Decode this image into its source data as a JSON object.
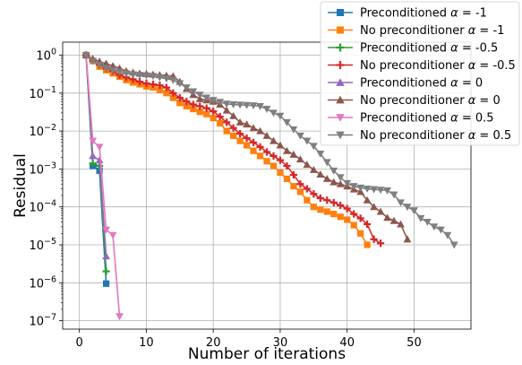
{
  "chart_data": {
    "type": "line",
    "xlabel": "Number of iterations",
    "ylabel": "Residual",
    "xlim": [
      -2.5,
      58.5
    ],
    "ylim": [
      6e-08,
      2.2
    ],
    "yscale": "log",
    "grid": true,
    "legend_position": "top-right",
    "xticks": [
      0,
      10,
      20,
      30,
      40,
      50
    ],
    "xtick_labels": [
      "0",
      "10",
      "20",
      "30",
      "40",
      "50"
    ],
    "yticks": [
      1e-07,
      1e-06,
      1e-05,
      0.0001,
      0.001,
      0.01,
      0.1,
      1
    ],
    "ytick_labels": [
      {
        "base": "10",
        "exp": "−7"
      },
      {
        "base": "10",
        "exp": "−6"
      },
      {
        "base": "10",
        "exp": "−5"
      },
      {
        "base": "10",
        "exp": "−4"
      },
      {
        "base": "10",
        "exp": "−3"
      },
      {
        "base": "10",
        "exp": "−2"
      },
      {
        "base": "10",
        "exp": "−1"
      },
      {
        "base": "10",
        "exp": "0"
      }
    ],
    "series": [
      {
        "name": "Preconditioned α = -1",
        "name_prefix": "Preconditioned ",
        "name_alpha": "α",
        "name_value": " = -1",
        "color": "#1f77b4",
        "marker": "square",
        "x": [
          1,
          2,
          3,
          4
        ],
        "y": [
          1.0,
          0.0012,
          0.0009,
          9.5e-07
        ]
      },
      {
        "name": "No preconditioner α = -1",
        "name_prefix": "No preconditioner ",
        "name_alpha": "α",
        "name_value": " = -1",
        "color": "#ff7f0e",
        "marker": "square",
        "x": [
          1,
          2,
          3,
          4,
          5,
          6,
          7,
          8,
          9,
          10,
          11,
          12,
          13,
          14,
          15,
          16,
          17,
          18,
          19,
          20,
          21,
          22,
          23,
          24,
          25,
          26,
          27,
          28,
          29,
          30,
          31,
          32,
          33,
          34,
          35,
          36,
          37,
          38,
          39,
          40,
          41,
          42,
          43
        ],
        "y": [
          1.0,
          0.7,
          0.5,
          0.4,
          0.33,
          0.27,
          0.22,
          0.19,
          0.17,
          0.15,
          0.14,
          0.12,
          0.1,
          0.075,
          0.055,
          0.045,
          0.038,
          0.032,
          0.028,
          0.022,
          0.016,
          0.01,
          0.0075,
          0.0055,
          0.0042,
          0.003,
          0.0022,
          0.0016,
          0.0012,
          0.0008,
          0.00055,
          0.00035,
          0.00025,
          0.00015,
          0.0001,
          8.5e-05,
          7.5e-05,
          6.5e-05,
          5.5e-05,
          4.6e-05,
          3.3e-05,
          2e-05,
          1e-05
        ]
      },
      {
        "name": "Preconditioned α = -0.5",
        "name_prefix": "Preconditioned ",
        "name_alpha": "α",
        "name_value": " = -0.5",
        "color": "#2ca02c",
        "marker": "plus",
        "x": [
          1,
          2,
          3,
          4
        ],
        "y": [
          1.0,
          0.0014,
          0.0012,
          2e-06
        ]
      },
      {
        "name": "No preconditioner α = -0.5",
        "name_prefix": "No preconditioner ",
        "name_alpha": "α",
        "name_value": " = -0.5",
        "color": "#d62728",
        "marker": "plus",
        "x": [
          1,
          2,
          3,
          4,
          5,
          6,
          7,
          8,
          9,
          10,
          11,
          12,
          13,
          14,
          15,
          16,
          17,
          18,
          19,
          20,
          21,
          22,
          23,
          24,
          25,
          26,
          27,
          28,
          29,
          30,
          31,
          32,
          33,
          34,
          35,
          36,
          37,
          38,
          39,
          40,
          41,
          42,
          43,
          44,
          45
        ],
        "y": [
          1.0,
          0.75,
          0.56,
          0.45,
          0.38,
          0.3,
          0.26,
          0.23,
          0.2,
          0.18,
          0.17,
          0.16,
          0.14,
          0.1,
          0.075,
          0.06,
          0.05,
          0.045,
          0.04,
          0.033,
          0.024,
          0.017,
          0.012,
          0.0085,
          0.0065,
          0.005,
          0.0038,
          0.0028,
          0.0022,
          0.0017,
          0.0012,
          0.0007,
          0.0004,
          0.0003,
          0.00022,
          0.00017,
          0.00015,
          0.00013,
          0.00011,
          9e-05,
          6.5e-05,
          5e-05,
          3.5e-05,
          1.4e-05,
          1.1e-05
        ]
      },
      {
        "name": "Preconditioned α = 0",
        "name_prefix": "Preconditioned ",
        "name_alpha": "α",
        "name_value": " = 0",
        "color": "#9467bd",
        "marker": "triangle-up",
        "x": [
          1,
          2,
          3,
          4
        ],
        "y": [
          1.0,
          0.0022,
          0.0017,
          5e-06
        ]
      },
      {
        "name": "No preconditioner α = 0",
        "name_prefix": "No preconditioner ",
        "name_alpha": "α",
        "name_value": " = 0",
        "color": "#8c564b",
        "marker": "triangle-up",
        "x": [
          1,
          2,
          3,
          4,
          5,
          6,
          7,
          8,
          9,
          10,
          11,
          12,
          13,
          14,
          15,
          16,
          17,
          18,
          19,
          20,
          21,
          22,
          23,
          24,
          25,
          26,
          27,
          28,
          29,
          30,
          31,
          32,
          33,
          34,
          35,
          36,
          37,
          38,
          39,
          40,
          41,
          42,
          43,
          44,
          45,
          46,
          47,
          48,
          49
        ],
        "y": [
          1.0,
          0.8,
          0.68,
          0.6,
          0.52,
          0.45,
          0.38,
          0.35,
          0.33,
          0.32,
          0.31,
          0.3,
          0.29,
          0.28,
          0.2,
          0.13,
          0.09,
          0.07,
          0.065,
          0.06,
          0.05,
          0.035,
          0.025,
          0.017,
          0.015,
          0.012,
          0.01,
          0.0075,
          0.0055,
          0.0042,
          0.003,
          0.0024,
          0.0018,
          0.0013,
          0.00095,
          0.00072,
          0.00055,
          0.00045,
          0.0004,
          0.00035,
          0.00029,
          0.00025,
          0.00015,
          0.0001,
          7.5e-05,
          5.2e-05,
          4.3e-05,
          3.5e-05,
          1.4e-05
        ]
      },
      {
        "name": "Preconditioned α = 0.5",
        "name_prefix": "Preconditioned ",
        "name_alpha": "α",
        "name_value": " = 0.5",
        "color": "#e377c2",
        "marker": "triangle-down",
        "x": [
          1,
          2,
          3,
          4,
          5,
          6
        ],
        "y": [
          1.0,
          0.0055,
          0.0038,
          2.5e-05,
          1.8e-05,
          1.3e-07
        ]
      },
      {
        "name": "No preconditioner α = 0.5",
        "name_prefix": "No preconditioner ",
        "name_alpha": "α",
        "name_value": " = 0.5",
        "color": "#7f7f7f",
        "marker": "triangle-down",
        "x": [
          1,
          2,
          3,
          4,
          5,
          6,
          7,
          8,
          9,
          10,
          11,
          12,
          13,
          14,
          15,
          16,
          17,
          18,
          19,
          20,
          21,
          22,
          23,
          24,
          25,
          26,
          27,
          28,
          29,
          30,
          31,
          32,
          33,
          34,
          35,
          36,
          37,
          38,
          39,
          40,
          41,
          42,
          43,
          44,
          45,
          46,
          47,
          48,
          49,
          50,
          51,
          52,
          53,
          54,
          55,
          56
        ],
        "y": [
          1.0,
          0.7,
          0.55,
          0.45,
          0.4,
          0.36,
          0.33,
          0.31,
          0.3,
          0.29,
          0.28,
          0.26,
          0.24,
          0.22,
          0.18,
          0.14,
          0.11,
          0.09,
          0.075,
          0.065,
          0.058,
          0.052,
          0.05,
          0.049,
          0.048,
          0.047,
          0.045,
          0.038,
          0.03,
          0.025,
          0.017,
          0.011,
          0.0075,
          0.0055,
          0.004,
          0.0025,
          0.0015,
          0.0009,
          0.0006,
          0.00042,
          0.00035,
          0.00032,
          0.0003,
          0.00029,
          0.00028,
          0.00027,
          0.00021,
          0.00013,
          0.0001,
          8e-05,
          5e-05,
          4e-05,
          3e-05,
          2.5e-05,
          1.8e-05,
          1e-05
        ]
      }
    ]
  }
}
